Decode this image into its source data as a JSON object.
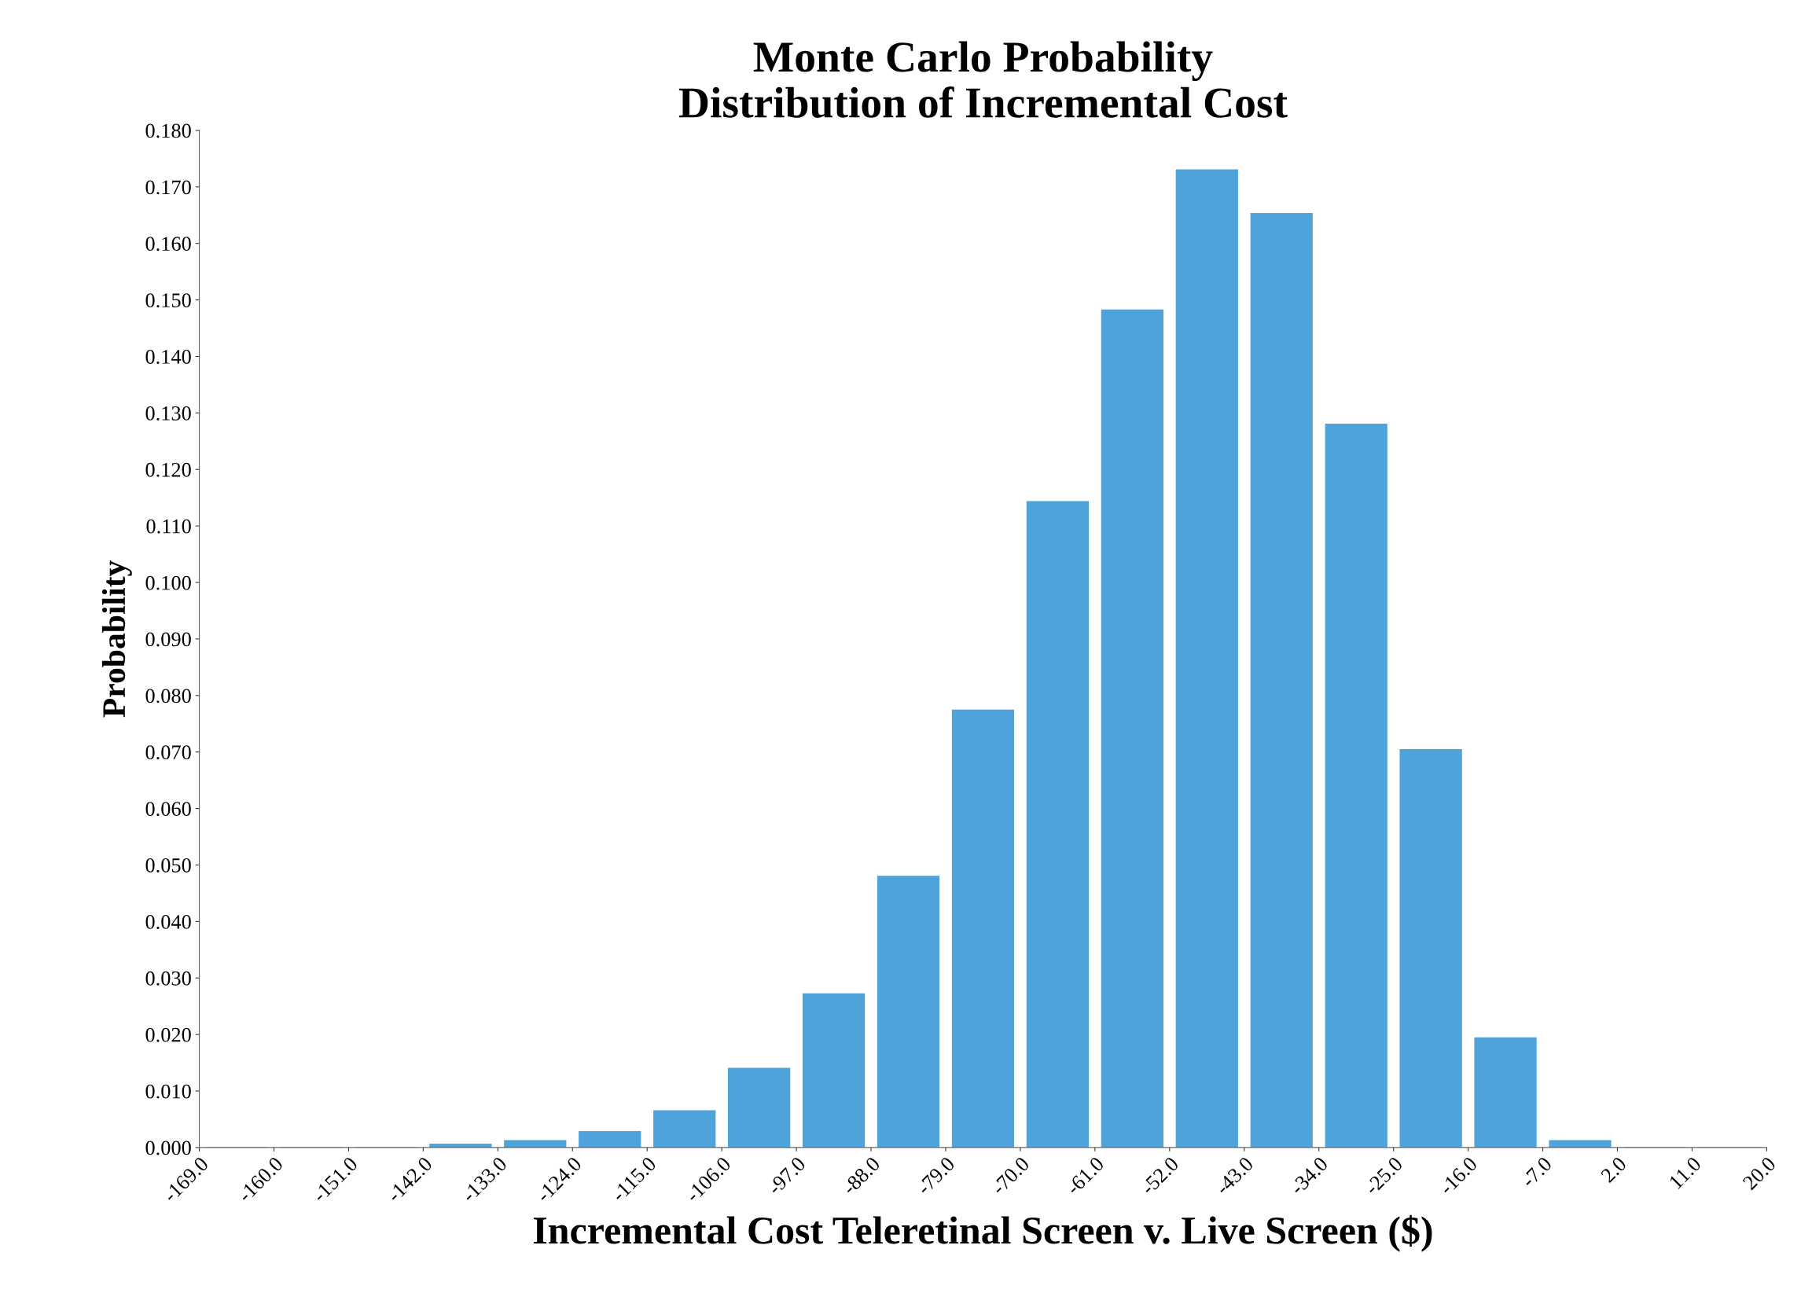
{
  "chart_data": {
    "type": "histogram",
    "title": "Monte Carlo Probability\nDistribution of Incremental Cost",
    "xlabel": "Incremental Cost Teleretinal Screen v. Live Screen ($)",
    "ylabel": "Probability",
    "color": "#4fa3da",
    "bins": [
      -169,
      -160,
      -151,
      -142,
      -133,
      -124,
      -115,
      -106,
      -97,
      -88,
      -79,
      -70,
      -61,
      -52,
      -43,
      -34,
      -25,
      -16,
      -7,
      2,
      11,
      20
    ],
    "values": [
      0,
      0,
      0,
      0.0006,
      0.0012,
      0.0028,
      0.0065,
      0.014,
      0.0272,
      0.048,
      0.0774,
      0.1143,
      0.1482,
      0.173,
      0.1653,
      0.128,
      0.0704,
      0.0194,
      0.0012,
      0,
      0
    ],
    "xlim": [
      -169,
      20
    ],
    "xticks": [
      {
        "value": -169,
        "label": "-169.0"
      },
      {
        "value": -160,
        "label": "-160.0"
      },
      {
        "value": -151,
        "label": "-151.0"
      },
      {
        "value": -142,
        "label": "-142.0"
      },
      {
        "value": -133,
        "label": "-133.0"
      },
      {
        "value": -124,
        "label": "-124.0"
      },
      {
        "value": -115,
        "label": "-115.0"
      },
      {
        "value": -106,
        "label": "-106.0"
      },
      {
        "value": -97,
        "label": "-97.0"
      },
      {
        "value": -88,
        "label": "-88.0"
      },
      {
        "value": -79,
        "label": "-79.0"
      },
      {
        "value": -70,
        "label": "-70.0"
      },
      {
        "value": -61,
        "label": "-61.0"
      },
      {
        "value": -52,
        "label": "-52.0"
      },
      {
        "value": -43,
        "label": "-43.0"
      },
      {
        "value": -34,
        "label": "-34.0"
      },
      {
        "value": -25,
        "label": "-25.0"
      },
      {
        "value": -16,
        "label": "-16.0"
      },
      {
        "value": -7,
        "label": "-7.0"
      },
      {
        "value": 2,
        "label": "2.0"
      },
      {
        "value": 11,
        "label": "11.0"
      },
      {
        "value": 20,
        "label": "20.0"
      }
    ],
    "ylim": [
      0,
      0.18
    ],
    "yticks": [
      {
        "value": 0,
        "label": "0.000"
      },
      {
        "value": 0.01,
        "label": "0.010"
      },
      {
        "value": 0.02,
        "label": "0.020"
      },
      {
        "value": 0.03,
        "label": "0.030"
      },
      {
        "value": 0.04,
        "label": "0.040"
      },
      {
        "value": 0.05,
        "label": "0.050"
      },
      {
        "value": 0.06,
        "label": "0.060"
      },
      {
        "value": 0.07,
        "label": "0.070"
      },
      {
        "value": 0.08,
        "label": "0.080"
      },
      {
        "value": 0.09,
        "label": "0.090"
      },
      {
        "value": 0.1,
        "label": "0.100"
      },
      {
        "value": 0.11,
        "label": "0.110"
      },
      {
        "value": 0.12,
        "label": "0.120"
      },
      {
        "value": 0.13,
        "label": "0.130"
      },
      {
        "value": 0.14,
        "label": "0.140"
      },
      {
        "value": 0.15,
        "label": "0.150"
      },
      {
        "value": 0.16,
        "label": "0.160"
      },
      {
        "value": 0.17,
        "label": "0.170"
      },
      {
        "value": 0.18,
        "label": "0.180"
      }
    ],
    "grid": false,
    "legend": false
  }
}
